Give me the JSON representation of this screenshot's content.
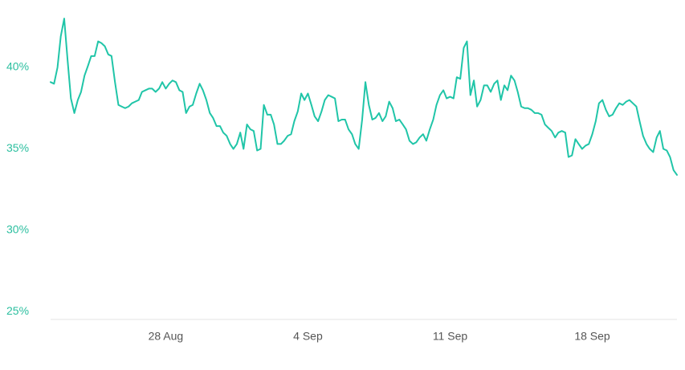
{
  "chart_data": {
    "type": "line",
    "color": "#20c5a8",
    "x": [
      22.33,
      22.5,
      22.67,
      22.83,
      23,
      23.17,
      23.33,
      23.5,
      23.67,
      23.83,
      24,
      24.17,
      24.33,
      24.5,
      24.67,
      24.83,
      25,
      25.17,
      25.33,
      25.5,
      25.67,
      25.83,
      26,
      26.17,
      26.33,
      26.5,
      26.67,
      26.83,
      27,
      27.17,
      27.33,
      27.5,
      27.67,
      27.83,
      28,
      28.17,
      28.33,
      28.5,
      28.67,
      28.83,
      29,
      29.17,
      29.33,
      29.5,
      29.67,
      29.83,
      30,
      30.17,
      30.33,
      30.5,
      30.67,
      30.83,
      31,
      31.17,
      31.33,
      31.5,
      31.67,
      31.83,
      32,
      32.17,
      32.33,
      32.5,
      32.67,
      32.83,
      33,
      33.17,
      33.33,
      33.5,
      33.67,
      33.83,
      34,
      34.17,
      34.33,
      34.5,
      34.67,
      34.83,
      35,
      35.17,
      35.33,
      35.5,
      35.67,
      35.83,
      36,
      36.17,
      36.33,
      36.5,
      36.67,
      36.83,
      37,
      37.17,
      37.33,
      37.5,
      37.67,
      37.83,
      38,
      38.17,
      38.33,
      38.5,
      38.67,
      38.83,
      39,
      39.17,
      39.33,
      39.5,
      39.67,
      39.83,
      40,
      40.17,
      40.33,
      40.5,
      40.67,
      40.83,
      41,
      41.17,
      41.33,
      41.5,
      41.67,
      41.83,
      42,
      42.17,
      42.33,
      42.5,
      42.67,
      42.83,
      43,
      43.17,
      43.33,
      43.5,
      43.67,
      43.83,
      44,
      44.17,
      44.33,
      44.5,
      44.67,
      44.83,
      45,
      45.17,
      45.33,
      45.5,
      45.67,
      45.83,
      46,
      46.17,
      46.33,
      46.5,
      46.67,
      46.83,
      47,
      47.17,
      47.33,
      47.5,
      47.67,
      47.83,
      48,
      48.17,
      48.33,
      48.5,
      48.67,
      48.83,
      49,
      49.17,
      49.33,
      49.5,
      49.67,
      49.83,
      50,
      50.17,
      50.33,
      50.5,
      50.67,
      50.83,
      51,
      51.17,
      51.33,
      51.5,
      51.67,
      51.83,
      52,
      52.17,
      52.33,
      52.5,
      52.67,
      52.83,
      53,
      53.17
    ],
    "values": [
      39.1,
      39.0,
      40.0,
      41.9,
      43.0,
      40.4,
      38.1,
      37.2,
      38.0,
      38.5,
      39.5,
      40.1,
      40.7,
      40.7,
      41.6,
      41.5,
      41.3,
      40.8,
      40.7,
      39.1,
      37.7,
      37.6,
      37.5,
      37.6,
      37.8,
      37.9,
      38.0,
      38.5,
      38.6,
      38.7,
      38.7,
      38.5,
      38.7,
      39.1,
      38.7,
      39.0,
      39.2,
      39.1,
      38.6,
      38.5,
      37.2,
      37.6,
      37.7,
      38.4,
      39.0,
      38.6,
      38.0,
      37.2,
      36.9,
      36.4,
      36.4,
      36.0,
      35.8,
      35.3,
      35.0,
      35.3,
      36.0,
      35.0,
      36.5,
      36.2,
      36.1,
      34.9,
      35.0,
      37.7,
      37.1,
      37.1,
      36.5,
      35.3,
      35.3,
      35.5,
      35.8,
      35.9,
      36.7,
      37.3,
      38.4,
      38.0,
      38.4,
      37.7,
      37.0,
      36.7,
      37.3,
      38.0,
      38.3,
      38.2,
      38.1,
      36.7,
      36.8,
      36.8,
      36.2,
      35.9,
      35.3,
      35.0,
      36.8,
      39.1,
      37.7,
      36.8,
      36.9,
      37.2,
      36.7,
      37.0,
      37.9,
      37.5,
      36.7,
      36.8,
      36.5,
      36.2,
      35.5,
      35.3,
      35.4,
      35.7,
      35.9,
      35.5,
      36.2,
      36.8,
      37.7,
      38.3,
      38.6,
      38.1,
      38.2,
      38.1,
      39.4,
      39.3,
      41.2,
      41.6,
      38.3,
      39.2,
      37.6,
      38.0,
      38.9,
      38.9,
      38.5,
      39.0,
      39.2,
      38.0,
      38.9,
      38.6,
      39.5,
      39.2,
      38.5,
      37.6,
      37.5,
      37.5,
      37.4,
      37.2,
      37.2,
      37.1,
      36.5,
      36.3,
      36.1,
      35.7,
      36.0,
      36.1,
      36.0,
      34.5,
      34.6,
      35.6,
      35.3,
      35.0,
      35.2,
      35.3,
      35.9,
      36.7,
      37.8,
      38.0,
      37.4,
      37.0,
      37.1,
      37.5,
      37.8,
      37.7,
      37.9,
      38.0,
      37.8,
      37.6,
      36.7,
      35.8,
      35.3,
      35.0,
      34.8,
      35.7,
      36.1,
      35.0,
      34.9,
      34.5,
      33.7,
      33.4
    ],
    "xlim": [
      22.33,
      53.17
    ],
    "xticks": [
      {
        "value": 28,
        "label": "28 Aug"
      },
      {
        "value": 35,
        "label": "4 Sep"
      },
      {
        "value": 42,
        "label": "11 Sep"
      },
      {
        "value": 49,
        "label": "18 Sep"
      }
    ],
    "ylim": [
      24.5,
      43.5
    ],
    "yticks": [
      {
        "value": 25,
        "label": "25%"
      },
      {
        "value": 30,
        "label": "30%"
      },
      {
        "value": 35,
        "label": "35%"
      },
      {
        "value": 40,
        "label": "40%"
      }
    ],
    "grid": false
  }
}
